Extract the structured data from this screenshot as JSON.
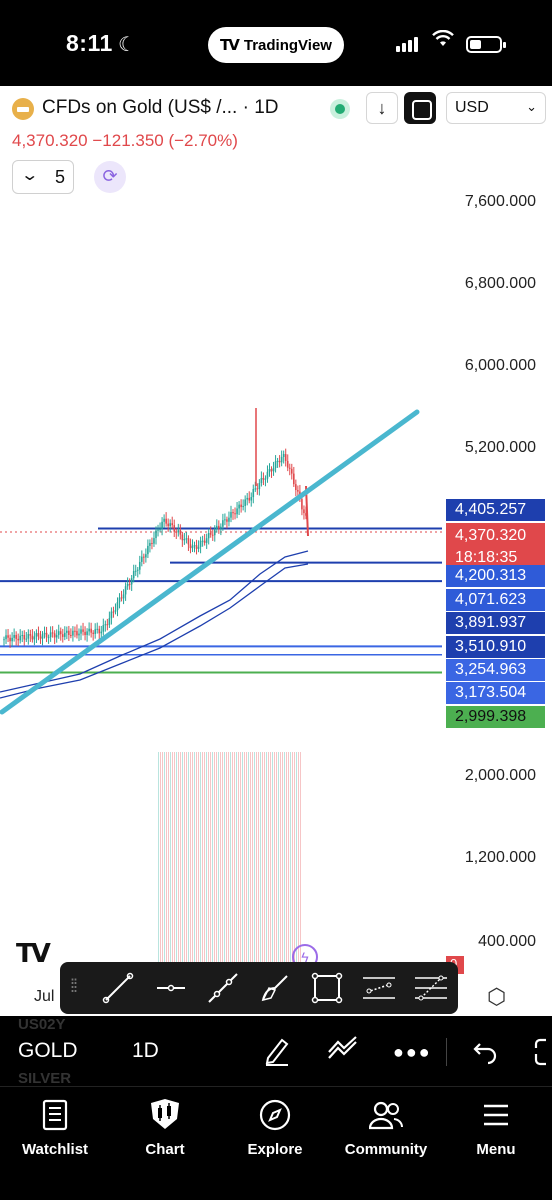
{
  "status_bar": {
    "time": "8:11",
    "app_pill": "TradingView"
  },
  "header": {
    "symbol_title": "CFDs on Gold (US$ /... · 1D",
    "currency": "USD",
    "price_line": "4,370.320  −121.350 (−2.70%)",
    "indicator_count": "5"
  },
  "y_axis_labels": [
    "7,600.000",
    "6,800.000",
    "6,000.000",
    "5,200.000",
    "2,000.000",
    "1,200.000",
    "400.000"
  ],
  "price_tags": [
    {
      "value": "4,405.257",
      "style": "dark"
    },
    {
      "value": "4,200.313",
      "style": "mid"
    },
    {
      "value": "4,071.623",
      "style": "mid"
    },
    {
      "value": "3,891.937",
      "style": "dark"
    },
    {
      "value": "3,510.910",
      "style": "dark"
    },
    {
      "value": "3,254.963",
      "style": "light"
    },
    {
      "value": "3,173.504",
      "style": "light"
    },
    {
      "value": "2,999.398",
      "style": "green"
    }
  ],
  "last_price_tag": {
    "price": "4,370.320",
    "countdown": "18:18:35"
  },
  "volume_tag": "0",
  "x_axis_label": "Jul",
  "colors": {
    "down": "#e0484b",
    "up": "#26a69a",
    "trendline": "#4ab7cf",
    "hline_dark": "#1e3fae",
    "hline_light": "#3a66e3",
    "hline_green": "#4caf50",
    "accent_purple": "#8a63e0"
  },
  "drawing_toolbar": {
    "tools": [
      "trend-line",
      "horizontal-line",
      "ray",
      "brush",
      "rectangle",
      "parallel-channel",
      "fib-retracement"
    ]
  },
  "symbol_row": {
    "ghost_above": "US02Y",
    "symbol": "GOLD",
    "timeframe": "1D",
    "ghost_below": "SILVER"
  },
  "bottom_nav": [
    {
      "label": "Watchlist",
      "icon": "watchlist-icon"
    },
    {
      "label": "Chart",
      "icon": "chart-icon"
    },
    {
      "label": "Explore",
      "icon": "compass-icon"
    },
    {
      "label": "Community",
      "icon": "community-icon"
    },
    {
      "label": "Menu",
      "icon": "menu-icon"
    }
  ]
}
